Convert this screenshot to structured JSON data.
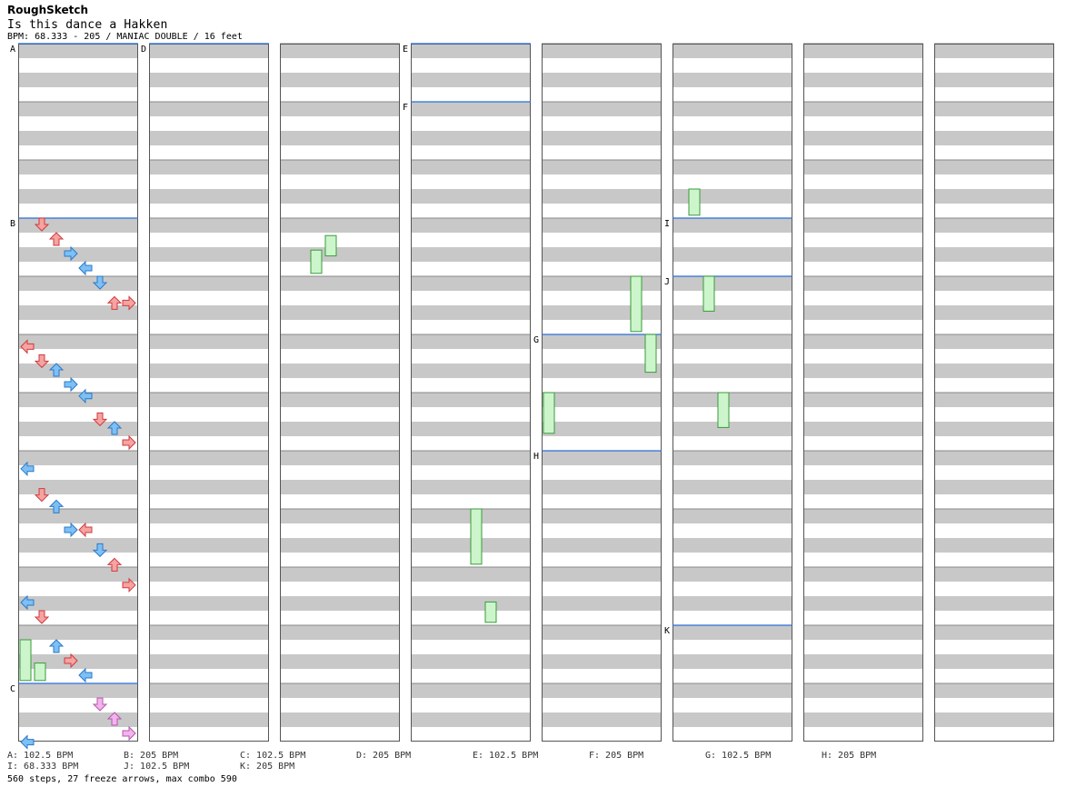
{
  "header": {
    "artist": "RoughSketch",
    "title": "Is this dance a Hakken",
    "info": "BPM: 68.333 - 205 / MANIAC DOUBLE / 16 feet"
  },
  "colors": {
    "background": "#ffffff",
    "stripe": "#c8c8c8",
    "column_border": "#555555",
    "section_line": "#2a6edc",
    "arrow_red": "#f5a3a3",
    "arrow_red_stroke": "#d03a3a",
    "arrow_blue": "#7cc0f5",
    "arrow_blue_stroke": "#2c78c8",
    "arrow_pink": "#f3b3ee",
    "arrow_pink_stroke": "#b05aa8",
    "arrow_green": "#5ce05c",
    "arrow_green_stroke": "#1f9a1f",
    "arrow_yellow": "#f5ee7a",
    "arrow_yellow_stroke": "#c8b400",
    "freeze_body": "#ccf5cc",
    "freeze_stroke": "#3a9a3a"
  },
  "section_labels": [
    {
      "col": 0,
      "measure": 0,
      "label": "A"
    },
    {
      "col": 0,
      "measure": 3,
      "label": "B"
    },
    {
      "col": 0,
      "measure": 11,
      "label": "C"
    },
    {
      "col": 1,
      "measure": 0,
      "label": "D"
    },
    {
      "col": 3,
      "measure": 0,
      "label": "E"
    },
    {
      "col": 3,
      "measure": 1,
      "label": "F"
    },
    {
      "col": 4,
      "measure": 5,
      "label": "G"
    },
    {
      "col": 4,
      "measure": 7,
      "label": "H"
    },
    {
      "col": 5,
      "measure": 3,
      "label": "I"
    },
    {
      "col": 5,
      "measure": 4,
      "label": "J"
    },
    {
      "col": 5,
      "measure": 10,
      "label": "K"
    }
  ],
  "bpm_legend": [
    {
      "row": 0,
      "col": 0,
      "text": "A: 102.5 BPM"
    },
    {
      "row": 0,
      "col": 1,
      "text": "B: 205 BPM"
    },
    {
      "row": 0,
      "col": 2,
      "text": "C: 102.5 BPM"
    },
    {
      "row": 0,
      "col": 3,
      "text": "D: 205 BPM"
    },
    {
      "row": 0,
      "col": 4,
      "text": "E: 102.5 BPM"
    },
    {
      "row": 0,
      "col": 5,
      "text": "F: 205 BPM"
    },
    {
      "row": 0,
      "col": 6,
      "text": "G: 102.5 BPM"
    },
    {
      "row": 0,
      "col": 7,
      "text": "H: 205 BPM"
    },
    {
      "row": 1,
      "col": 0,
      "text": "I: 68.333 BPM"
    },
    {
      "row": 1,
      "col": 1,
      "text": "J: 102.5 BPM"
    },
    {
      "row": 1,
      "col": 2,
      "text": "K: 205 BPM"
    }
  ],
  "footer": "560 steps, 27 freeze arrows, max combo 590",
  "chart": {
    "columns": 8,
    "measures_per_column": 12,
    "lanes_per_column": 8,
    "notes": [
      [
        0,
        0,
        0.0,
        "none"
      ],
      [
        0,
        3,
        0.0,
        "red"
      ],
      [
        0,
        3,
        0.25,
        "red"
      ],
      [
        0,
        3,
        0.5,
        "blue"
      ],
      [
        0,
        3,
        0.75,
        "blue"
      ],
      [
        0,
        4,
        0.0,
        "blue"
      ],
      [
        0,
        4,
        0.35,
        "red"
      ],
      [
        0,
        4,
        0.35,
        "red"
      ],
      [
        0,
        5,
        0.1,
        "red"
      ],
      [
        0,
        5,
        0.35,
        "red"
      ],
      [
        0,
        5,
        0.5,
        "blue"
      ],
      [
        0,
        5,
        0.75,
        "blue"
      ],
      [
        0,
        5,
        0.95,
        "blue"
      ],
      [
        0,
        6,
        0.35,
        "red"
      ],
      [
        0,
        6,
        0.5,
        "blue"
      ],
      [
        0,
        6,
        0.75,
        "red"
      ],
      [
        0,
        7,
        0.2,
        "blue"
      ],
      [
        0,
        7,
        0.65,
        "red"
      ],
      [
        0,
        7,
        0.85,
        "blue"
      ],
      [
        0,
        8,
        0.25,
        "blue"
      ],
      [
        0,
        8,
        0.25,
        "red"
      ],
      [
        0,
        8,
        0.6,
        "blue"
      ],
      [
        0,
        8,
        0.85,
        "red"
      ],
      [
        0,
        9,
        0.2,
        "red"
      ],
      [
        0,
        9,
        0.5,
        "blue"
      ],
      [
        0,
        9,
        0.75,
        "red"
      ],
      [
        0,
        10,
        0.25,
        "blue"
      ],
      [
        0,
        10,
        0.5,
        "red"
      ],
      [
        0,
        10,
        0.75,
        "blue"
      ],
      [
        0,
        11,
        0.25,
        "pink"
      ],
      [
        0,
        11,
        0.5,
        "pink"
      ],
      [
        0,
        11,
        0.75,
        "pink"
      ],
      [
        0,
        11,
        0.9,
        "blue"
      ]
    ],
    "freezes": [
      [
        0,
        10,
        0.25,
        0.95,
        "green"
      ],
      [
        0,
        10,
        0.65,
        0.95,
        "green"
      ],
      [
        2,
        3,
        0.55,
        0.95,
        "green"
      ],
      [
        2,
        3,
        0.3,
        0.65,
        "green"
      ],
      [
        3,
        8,
        0.0,
        0.95,
        "green"
      ],
      [
        3,
        9,
        0.6,
        0.95,
        "green"
      ],
      [
        4,
        4,
        0.0,
        0.95,
        "green"
      ],
      [
        4,
        5,
        0.0,
        0.65,
        "green"
      ],
      [
        4,
        6,
        0.0,
        0.7,
        "green"
      ],
      [
        5,
        2,
        0.5,
        0.95,
        "green"
      ],
      [
        5,
        4,
        0.0,
        0.6,
        "green"
      ],
      [
        5,
        6,
        0.0,
        0.6,
        "green"
      ]
    ]
  }
}
